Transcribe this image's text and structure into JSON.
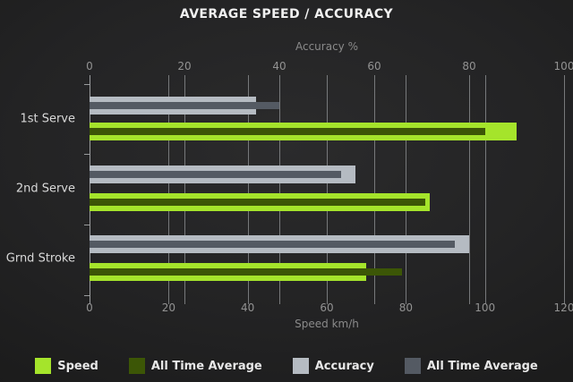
{
  "chart_data": {
    "type": "bar",
    "orientation": "horizontal",
    "title": "AVERAGE SPEED / ACCURACY",
    "categories": [
      "1st Serve",
      "2nd Serve",
      "Grnd Stroke"
    ],
    "top_axis": {
      "title": "Accuracy %",
      "min": 0,
      "max": 100,
      "ticks": [
        0,
        20,
        40,
        60,
        80,
        100
      ]
    },
    "bottom_axis": {
      "title": "Speed km/h",
      "min": 0,
      "max": 120,
      "ticks": [
        0,
        20,
        40,
        60,
        80,
        100,
        120
      ]
    },
    "grid": true,
    "legend_position": "bottom",
    "series": [
      {
        "name": "Speed",
        "group": "speed",
        "role": "outer",
        "axis": "bottom",
        "color": "#a5e42b",
        "values": [
          108,
          86,
          70
        ]
      },
      {
        "name": "All Time Average",
        "group": "speed",
        "role": "inner",
        "axis": "bottom",
        "color": "#3c5606",
        "values": [
          100,
          85,
          79
        ]
      },
      {
        "name": "Accuracy",
        "group": "accuracy",
        "role": "outer",
        "axis": "top",
        "color": "#b5bbc2",
        "values": [
          35,
          56,
          80
        ]
      },
      {
        "name": "All Time Average",
        "group": "accuracy",
        "role": "inner",
        "axis": "top",
        "color": "#545a63",
        "values": [
          40,
          53,
          77
        ]
      }
    ],
    "legend": [
      {
        "label": "Speed",
        "color": "#a5e42b"
      },
      {
        "label": "All Time Average",
        "color": "#3c5606"
      },
      {
        "label": "Accuracy",
        "color": "#b5bbc2"
      },
      {
        "label": "All Time Average",
        "color": "#545a63"
      }
    ]
  }
}
